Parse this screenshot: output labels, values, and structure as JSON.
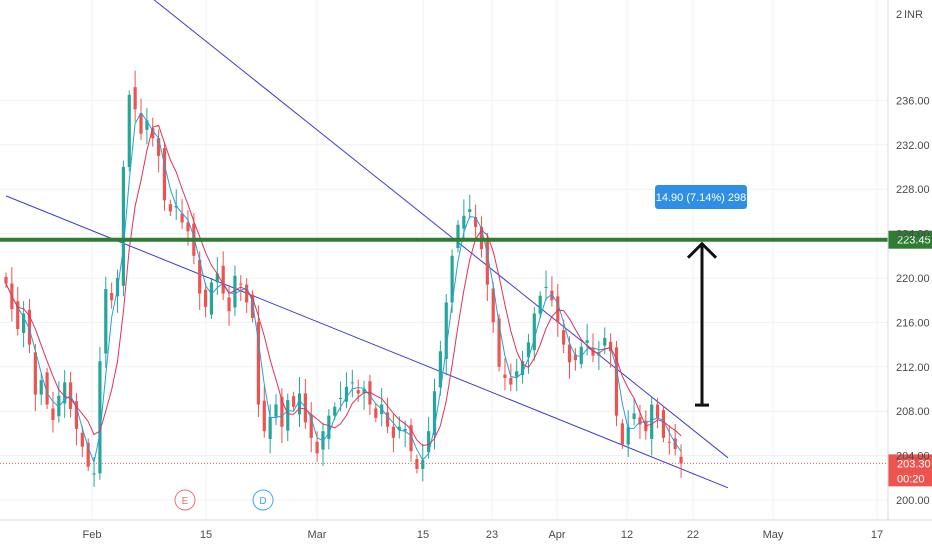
{
  "chart_data": {
    "type": "candlestick",
    "currency": "INR",
    "ylim": [
      199,
      240
    ],
    "y_ticks": [
      200.0,
      204.0,
      208.0,
      212.0,
      216.0,
      220.0,
      224.0,
      228.0,
      232.0,
      236.0
    ],
    "y_tick_labels": [
      "200.00",
      "204.00",
      "208.00",
      "212.00",
      "216.00",
      "220.00",
      "224.00",
      "228.00",
      "232.00",
      "236.00"
    ],
    "x_tick_labels": [
      "Feb",
      "15",
      "Mar",
      "15",
      "23",
      "Apr",
      "12",
      "22",
      "May",
      "17"
    ],
    "grid": true,
    "last_price": 203.3,
    "last_price_label": "203.30",
    "countdown_label": "00:20",
    "support_level": 223.45,
    "support_level_label": "223.45",
    "measure_label": "14.90 (7.14%) 298",
    "measure_from": 208.55,
    "measure_to": 223.45,
    "events": [
      {
        "letter": "E",
        "color": "#e57373"
      },
      {
        "letter": "D",
        "color": "#42a5f5"
      }
    ],
    "trendlines": [
      {
        "name": "descending-resistance",
        "from": {
          "bar": 23,
          "price": 246
        },
        "to": {
          "bar": 123,
          "price": 203.8
        }
      },
      {
        "name": "descending-support",
        "from": {
          "bar": 0,
          "price": 227.4
        },
        "to": {
          "bar": 123,
          "price": 201.1
        }
      }
    ],
    "ma_periods": [
      3,
      6
    ],
    "ma_colors": [
      "#26a0da",
      "#e0325c"
    ],
    "candle_colors": {
      "up": "#26a69a",
      "down": "#ef5350"
    },
    "close": [
      219.5,
      217.2,
      215.4,
      216.8,
      214.0,
      209.5,
      210.8,
      208.6,
      207.2,
      209.4,
      210.6,
      208.2,
      206.4,
      204.8,
      203.0,
      202.4,
      212.5,
      219.0,
      218.0,
      220.0,
      230.0,
      236.5,
      235.2,
      233.0,
      234.2,
      232.6,
      231.0,
      227.0,
      226.0,
      226.5,
      225.0,
      224.2,
      222.0,
      218.6,
      217.4,
      219.6,
      220.4,
      218.6,
      217.0,
      220.2,
      219.4,
      217.8,
      216.4,
      208.6,
      206.2,
      207.5,
      208.6,
      206.6,
      209.0,
      208.4,
      209.6,
      207.0,
      205.6,
      204.2,
      206.2,
      207.6,
      208.4,
      209.2,
      210.2,
      210.6,
      209.6,
      210.0,
      208.6,
      207.4,
      208.6,
      206.6,
      205.6,
      206.6,
      206.4,
      204.4,
      202.8,
      203.6,
      206.2,
      209.8,
      213.4,
      217.8,
      222.0,
      224.8,
      225.6,
      226.2,
      224.6,
      222.6,
      219.4,
      216.0,
      212.0,
      211.0,
      210.4,
      211.6,
      212.5,
      214.2,
      216.8,
      218.4,
      219.2,
      218.0,
      216.0,
      214.0,
      212.4,
      212.6,
      213.8,
      214.4,
      213.0,
      213.2,
      214.6,
      213.4,
      207.6,
      205.0,
      206.6,
      207.8,
      206.8,
      206.2,
      208.6,
      207.4,
      205.6,
      205.2,
      204.6,
      203.3
    ]
  }
}
